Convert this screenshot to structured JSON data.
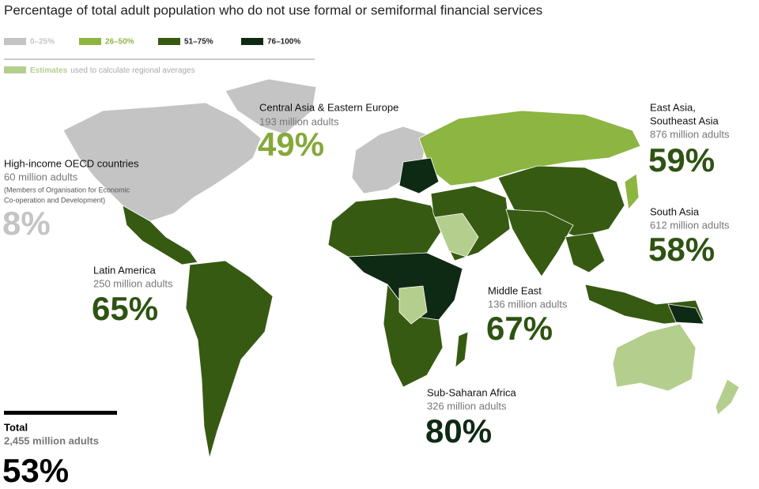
{
  "header": {
    "title": "Percentage of total adult population who do not use formal or semiformal financial services"
  },
  "legend": [
    {
      "label": "0–25%",
      "color": "#c4c4c4"
    },
    {
      "label": "26–50%",
      "color": "#8db542"
    },
    {
      "label": "51–75%",
      "color": "#375a12"
    },
    {
      "label": "76–100%",
      "color": "#0f2a14"
    }
  ],
  "estimates": {
    "label": "Estimates",
    "text": "used to calculate regional averages",
    "color": "#b4cf8d"
  },
  "regions": [
    {
      "name_lines": [
        "Central Asia & Eastern Europe"
      ],
      "adults": "193 million adults",
      "percent": "49%",
      "color": "#86a83a"
    },
    {
      "name_lines": [
        "East Asia,",
        "Southeast Asia"
      ],
      "adults": "876 million adults",
      "percent": "59%",
      "color": "#2e5312"
    },
    {
      "name_lines": [
        "High-income OECD countries"
      ],
      "adults": "60 million adults",
      "note_lines": [
        "(Members of Organisation for Economic",
        "Co-operation and Development)"
      ],
      "percent": "8%",
      "color": "#c4c4c4"
    },
    {
      "name_lines": [
        "South Asia"
      ],
      "adults": "612 million adults",
      "percent": "58%",
      "color": "#2e5312"
    },
    {
      "name_lines": [
        "Latin America"
      ],
      "adults": "250 million adults",
      "percent": "65%",
      "color": "#2e5312"
    },
    {
      "name_lines": [
        "Middle East"
      ],
      "adults": "136 million adults",
      "percent": "67%",
      "color": "#2e5312"
    },
    {
      "name_lines": [
        "Sub-Saharan Africa"
      ],
      "adults": "326 million adults",
      "percent": "80%",
      "color": "#0f2a14"
    }
  ],
  "total": {
    "label": "Total",
    "adults": "2,455 million adults",
    "percent": "53%"
  }
}
